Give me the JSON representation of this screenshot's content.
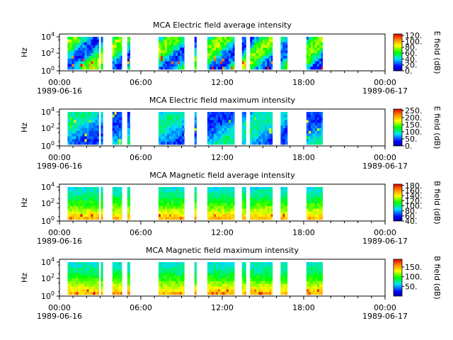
{
  "chart_data": [
    {
      "type": "heatmap",
      "title": "MCA  Electric field average intensity",
      "ylabel": "Hz",
      "yscale": "log",
      "y_ticks": [
        "10^0",
        "10^2",
        "10^4"
      ],
      "x_tick_times": [
        "00:00",
        "06:00",
        "12:00",
        "18:00",
        "00:00"
      ],
      "x_tick_dates": [
        "1989-06-16",
        "",
        "",
        "",
        "1989-06-17"
      ],
      "colorbar": {
        "label": "E field (dB)",
        "ticks": [
          "120.",
          "100.",
          "80.",
          "60.",
          "40.",
          "20.",
          "0."
        ],
        "range": [
          0,
          125
        ]
      },
      "data_intervals_hours": [
        [
          0.6,
          2.9
        ],
        [
          3.05,
          3.2
        ],
        [
          3.9,
          4.6
        ],
        [
          5.0,
          5.2
        ],
        [
          7.3,
          9.2
        ],
        [
          9.95,
          10.1
        ],
        [
          10.9,
          12.9
        ],
        [
          13.45,
          13.75
        ],
        [
          14.05,
          15.7
        ],
        [
          16.3,
          16.8
        ],
        [
          18.2,
          19.4
        ]
      ],
      "intensity_profile": "mid-to-high, strong bursts at low frequency"
    },
    {
      "type": "heatmap",
      "title": "MCA  Electric field maximum intensity",
      "ylabel": "Hz",
      "yscale": "log",
      "y_ticks": [
        "10^0",
        "10^2",
        "10^4"
      ],
      "x_tick_times": [
        "00:00",
        "06:00",
        "12:00",
        "18:00",
        "00:00"
      ],
      "x_tick_dates": [
        "1989-06-16",
        "",
        "",
        "",
        "1989-06-17"
      ],
      "colorbar": {
        "label": "E field (dB)",
        "ticks": [
          "250.",
          "200.",
          "150.",
          "100.",
          "50.",
          "0."
        ],
        "range": [
          0,
          260
        ]
      },
      "data_intervals_hours": [
        [
          0.6,
          2.9
        ],
        [
          3.05,
          3.2
        ],
        [
          3.9,
          4.6
        ],
        [
          5.0,
          5.2
        ],
        [
          7.3,
          9.2
        ],
        [
          9.95,
          10.1
        ],
        [
          10.9,
          12.9
        ],
        [
          13.45,
          13.75
        ],
        [
          14.05,
          15.7
        ],
        [
          16.3,
          16.8
        ],
        [
          18.2,
          19.4
        ]
      ],
      "intensity_profile": "mostly low-mid, dropouts near 02:30 and 14:00"
    },
    {
      "type": "heatmap",
      "title": "MCA  Magnetic field average intensity",
      "ylabel": "Hz",
      "yscale": "log",
      "y_ticks": [
        "10^0",
        "10^2",
        "10^4"
      ],
      "x_tick_times": [
        "00:00",
        "06:00",
        "12:00",
        "18:00",
        "00:00"
      ],
      "x_tick_dates": [
        "1989-06-16",
        "",
        "",
        "",
        "1989-06-17"
      ],
      "colorbar": {
        "label": "B field (dB)",
        "ticks": [
          "180.",
          "160.",
          "140.",
          "120.",
          "100.",
          "80.",
          "60.",
          "40."
        ],
        "range": [
          40,
          185
        ]
      },
      "data_intervals_hours": [
        [
          0.6,
          2.9
        ],
        [
          3.05,
          3.2
        ],
        [
          3.9,
          4.6
        ],
        [
          5.0,
          5.2
        ],
        [
          7.3,
          9.2
        ],
        [
          9.95,
          10.1
        ],
        [
          10.9,
          12.9
        ],
        [
          13.45,
          13.75
        ],
        [
          14.05,
          15.7
        ],
        [
          16.3,
          16.8
        ],
        [
          18.2,
          19.4
        ]
      ],
      "intensity_profile": "banded: high at low frequency, decreasing upward"
    },
    {
      "type": "heatmap",
      "title": "MCA  Magnetic field maximum intensity",
      "ylabel": "Hz",
      "yscale": "log",
      "y_ticks": [
        "10^0",
        "10^2",
        "10^4"
      ],
      "x_tick_times": [
        "00:00",
        "06:00",
        "12:00",
        "18:00",
        "00:00"
      ],
      "x_tick_dates": [
        "1989-06-16",
        "",
        "",
        "",
        "1989-06-17"
      ],
      "colorbar": {
        "label": "B field (dB)",
        "ticks": [
          "150.",
          "100.",
          "50."
        ],
        "range": [
          0,
          190
        ]
      },
      "data_intervals_hours": [
        [
          0.6,
          2.9
        ],
        [
          3.05,
          3.2
        ],
        [
          3.9,
          4.6
        ],
        [
          5.0,
          5.2
        ],
        [
          7.3,
          9.2
        ],
        [
          9.95,
          10.1
        ],
        [
          10.9,
          12.9
        ],
        [
          13.45,
          13.75
        ],
        [
          14.05,
          15.7
        ],
        [
          16.3,
          16.8
        ],
        [
          18.2,
          19.4
        ]
      ],
      "intensity_profile": "banded: high at low frequency, decreasing upward"
    }
  ]
}
